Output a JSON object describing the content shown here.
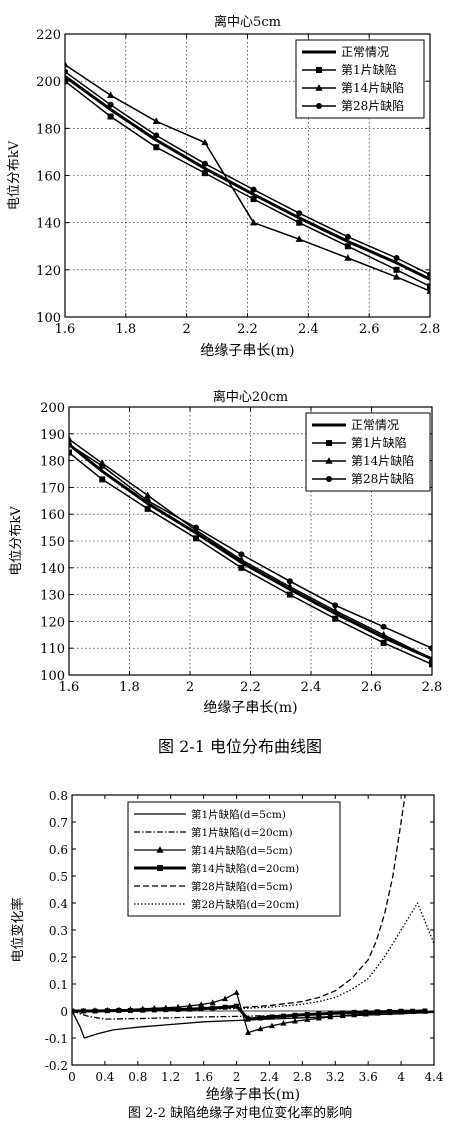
{
  "figure1": {
    "caption": "图 2-1  电位分布曲线图"
  },
  "figure2": {
    "caption": "图 2-2 缺陷绝缘子对电位变化率的影响"
  },
  "chart_data": [
    {
      "type": "line",
      "title": "离中心5cm",
      "xlabel": "绝缘子串长(m)",
      "ylabel": "电位分布kV",
      "xlim": [
        1.6,
        2.8
      ],
      "ylim": [
        100,
        220
      ],
      "xticks": [
        1.6,
        1.8,
        2,
        2.2,
        2.4,
        2.6,
        2.8
      ],
      "yticks": [
        100,
        120,
        140,
        160,
        180,
        200,
        220
      ],
      "grid": true,
      "legend_position": "top-right",
      "series": [
        {
          "name": "正常情况",
          "marker": "none",
          "lw": 3,
          "x": [
            1.6,
            1.75,
            1.9,
            2.06,
            2.22,
            2.37,
            2.53,
            2.69,
            2.8
          ],
          "y": [
            202,
            188,
            175,
            163,
            152,
            142,
            132,
            123,
            116
          ]
        },
        {
          "name": "第1片缺陷",
          "marker": "square",
          "lw": 1.5,
          "x": [
            1.6,
            1.75,
            1.9,
            2.06,
            2.22,
            2.37,
            2.53,
            2.69,
            2.8
          ],
          "y": [
            200,
            185,
            172,
            161,
            150,
            140,
            130,
            120,
            113
          ]
        },
        {
          "name": "第14片缺陷",
          "marker": "triangle",
          "lw": 1.5,
          "x": [
            1.6,
            1.75,
            1.9,
            2.06,
            2.22,
            2.37,
            2.53,
            2.69,
            2.8
          ],
          "y": [
            207,
            194,
            183,
            174,
            140,
            133,
            125,
            117,
            111
          ]
        },
        {
          "name": "第28片缺陷",
          "marker": "circle",
          "lw": 1.5,
          "x": [
            1.6,
            1.75,
            1.9,
            2.06,
            2.22,
            2.37,
            2.53,
            2.69,
            2.8
          ],
          "y": [
            204,
            190,
            177,
            165,
            154,
            144,
            134,
            125,
            118
          ]
        }
      ]
    },
    {
      "type": "line",
      "title": "离中心20cm",
      "xlabel": "绝缘子串长(m)",
      "ylabel": "电位分布kV",
      "xlim": [
        1.6,
        2.8
      ],
      "ylim": [
        100,
        200
      ],
      "xticks": [
        1.6,
        1.8,
        2,
        2.2,
        2.4,
        2.6,
        2.8
      ],
      "yticks": [
        100,
        110,
        120,
        130,
        140,
        150,
        160,
        170,
        180,
        190,
        200
      ],
      "grid": true,
      "legend_position": "top-right",
      "series": [
        {
          "name": "正常情况",
          "marker": "none",
          "lw": 3,
          "x": [
            1.6,
            1.71,
            1.86,
            2.02,
            2.17,
            2.33,
            2.48,
            2.64,
            2.8
          ],
          "y": [
            186,
            176,
            164,
            153,
            142,
            132,
            123,
            114,
            106
          ]
        },
        {
          "name": "第1片缺陷",
          "marker": "square",
          "lw": 1.5,
          "x": [
            1.6,
            1.71,
            1.86,
            2.02,
            2.17,
            2.33,
            2.48,
            2.64,
            2.8
          ],
          "y": [
            183,
            173,
            162,
            151,
            140,
            130,
            121,
            112,
            104
          ]
        },
        {
          "name": "第14片缺陷",
          "marker": "triangle",
          "lw": 1.5,
          "x": [
            1.6,
            1.71,
            1.86,
            2.02,
            2.17,
            2.33,
            2.48,
            2.64,
            2.8
          ],
          "y": [
            188,
            179,
            167,
            154,
            143,
            133,
            124,
            115,
            106
          ]
        },
        {
          "name": "第28片缺陷",
          "marker": "circle",
          "lw": 1.5,
          "x": [
            1.6,
            1.71,
            1.86,
            2.02,
            2.17,
            2.33,
            2.48,
            2.64,
            2.8
          ],
          "y": [
            186,
            178,
            165,
            155,
            145,
            135,
            126,
            118,
            110
          ]
        }
      ]
    },
    {
      "type": "line",
      "title": "",
      "xlabel": "绝缘子串长(m)",
      "ylabel": "电位变化率",
      "xlim": [
        0,
        4.4
      ],
      "ylim": [
        -0.2,
        0.8
      ],
      "xticks": [
        0,
        0.4,
        0.8,
        1.2,
        1.6,
        2,
        2.4,
        2.8,
        3.2,
        3.6,
        4,
        4.4
      ],
      "yticks": [
        -0.2,
        -0.1,
        0,
        0.1,
        0.2,
        0.3,
        0.4,
        0.5,
        0.6,
        0.7,
        0.8
      ],
      "grid": false,
      "legend_position": "top-center",
      "series": [
        {
          "name": "第1片缺陷(d=5cm)",
          "dash": "solid",
          "marker": "none",
          "x": [
            0,
            0.1,
            0.15,
            0.3,
            0.5,
            0.8,
            1.2,
            1.6,
            2.0,
            2.4,
            2.8,
            3.2,
            3.6,
            4.0,
            4.4
          ],
          "y": [
            0,
            -0.06,
            -0.1,
            -0.085,
            -0.07,
            -0.06,
            -0.05,
            -0.04,
            -0.035,
            -0.03,
            -0.025,
            -0.02,
            -0.015,
            -0.01,
            -0.005
          ]
        },
        {
          "name": "第1片缺陷(d=20cm)",
          "dash": "dashdot",
          "marker": "none",
          "x": [
            0,
            0.2,
            0.4,
            0.8,
            1.2,
            1.6,
            2.0,
            2.4,
            2.8,
            3.2,
            3.6,
            4.0,
            4.4
          ],
          "y": [
            0,
            -0.02,
            -0.03,
            -0.028,
            -0.025,
            -0.022,
            -0.02,
            -0.017,
            -0.014,
            -0.011,
            -0.008,
            -0.005,
            -0.003
          ]
        },
        {
          "name": "第14片缺陷(d=5cm)",
          "dash": "solid",
          "marker": "triangle",
          "x": [
            0,
            0.14,
            0.28,
            0.43,
            0.57,
            0.71,
            0.86,
            1.0,
            1.14,
            1.29,
            1.43,
            1.57,
            1.71,
            1.86,
            2.0,
            2.14,
            2.29,
            2.43,
            2.57,
            2.71,
            2.86,
            3.0,
            3.14,
            3.29,
            3.43,
            3.57,
            3.71,
            3.86,
            4.0,
            4.14,
            4.29
          ],
          "y": [
            0,
            0,
            0.002,
            0.003,
            0.004,
            0.006,
            0.008,
            0.01,
            0.012,
            0.015,
            0.019,
            0.024,
            0.031,
            0.045,
            0.068,
            -0.08,
            -0.066,
            -0.055,
            -0.046,
            -0.038,
            -0.032,
            -0.027,
            -0.022,
            -0.018,
            -0.015,
            -0.012,
            -0.009,
            -0.007,
            -0.005,
            -0.003,
            -0.002
          ]
        },
        {
          "name": "第14片缺陷(d=20cm)",
          "dash": "solid",
          "marker": "square",
          "lw": 3,
          "x": [
            0,
            0.14,
            0.28,
            0.43,
            0.57,
            0.71,
            0.86,
            1.0,
            1.14,
            1.29,
            1.43,
            1.57,
            1.71,
            1.86,
            2.0,
            2.14,
            2.29,
            2.43,
            2.57,
            2.71,
            2.86,
            3.0,
            3.14,
            3.29,
            3.43,
            3.57,
            3.71,
            3.86,
            4.0,
            4.14,
            4.29
          ],
          "y": [
            0,
            0,
            0,
            0.001,
            0.002,
            0.002,
            0.003,
            0.004,
            0.005,
            0.006,
            0.007,
            0.009,
            0.011,
            0.014,
            0.018,
            -0.03,
            -0.026,
            -0.022,
            -0.019,
            -0.016,
            -0.013,
            -0.011,
            -0.009,
            -0.007,
            -0.005,
            -0.004,
            -0.003,
            -0.002,
            -0.001,
            -0.001,
            0
          ]
        },
        {
          "name": "第28片缺陷(d=5cm)",
          "dash": "dashed",
          "marker": "none",
          "x": [
            0,
            0.4,
            0.8,
            1.2,
            1.6,
            2.0,
            2.4,
            2.8,
            3.0,
            3.2,
            3.4,
            3.6,
            3.7,
            3.8,
            3.9,
            4.0,
            4.05
          ],
          "y": [
            0.002,
            0.003,
            0.004,
            0.006,
            0.008,
            0.012,
            0.02,
            0.035,
            0.05,
            0.075,
            0.12,
            0.19,
            0.26,
            0.36,
            0.5,
            0.7,
            0.8
          ]
        },
        {
          "name": "第28片缺陷(d=20cm)",
          "dash": "dotted",
          "marker": "none",
          "x": [
            0,
            0.4,
            0.8,
            1.2,
            1.6,
            2.0,
            2.4,
            2.8,
            3.0,
            3.2,
            3.4,
            3.6,
            3.8,
            4.0,
            4.2,
            4.4
          ],
          "y": [
            0.001,
            0.002,
            0.003,
            0.004,
            0.006,
            0.009,
            0.014,
            0.025,
            0.035,
            0.05,
            0.08,
            0.12,
            0.2,
            0.3,
            0.4,
            0.25
          ]
        }
      ]
    }
  ]
}
